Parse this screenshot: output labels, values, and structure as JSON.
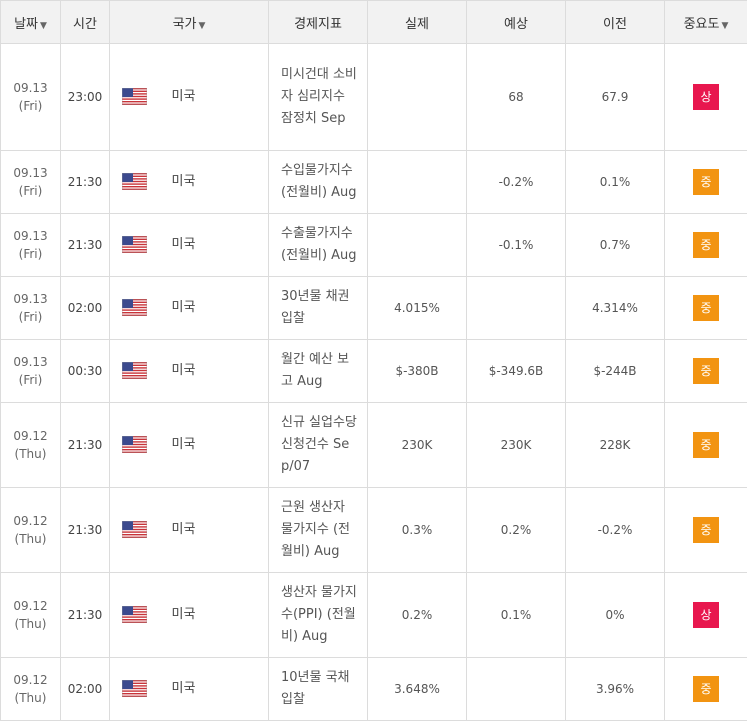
{
  "header": {
    "date": "날짜",
    "time": "시간",
    "country": "국가",
    "indicator": "경제지표",
    "actual": "실제",
    "forecast": "예상",
    "previous": "이전",
    "importance": "중요도",
    "sort_arrow": "▼"
  },
  "colors": {
    "high": "#e8174e",
    "mid": "#f29411"
  },
  "rows": [
    {
      "date": "09.13",
      "day": "(Fri)",
      "time": "23:00",
      "flag": "us-flag-icon",
      "country": "미국",
      "indicator": "미시건대 소비자 심리지수 잠정치 Sep",
      "actual": "",
      "forecast": "68",
      "previous": "67.9",
      "importance": "상",
      "level": "high"
    },
    {
      "date": "09.13",
      "day": "(Fri)",
      "time": "21:30",
      "flag": "us-flag-icon",
      "country": "미국",
      "indicator": "수입물가지수 (전월비) Aug",
      "actual": "",
      "forecast": "-0.2%",
      "previous": "0.1%",
      "importance": "중",
      "level": "mid"
    },
    {
      "date": "09.13",
      "day": "(Fri)",
      "time": "21:30",
      "flag": "us-flag-icon",
      "country": "미국",
      "indicator": "수출물가지수 (전월비) Aug",
      "actual": "",
      "forecast": "-0.1%",
      "previous": "0.7%",
      "importance": "중",
      "level": "mid"
    },
    {
      "date": "09.13",
      "day": "(Fri)",
      "time": "02:00",
      "flag": "us-flag-icon",
      "country": "미국",
      "indicator": "30년물 채권 입찰",
      "actual": "4.015%",
      "forecast": "",
      "previous": "4.314%",
      "importance": "중",
      "level": "mid"
    },
    {
      "date": "09.13",
      "day": "(Fri)",
      "time": "00:30",
      "flag": "us-flag-icon",
      "country": "미국",
      "indicator": "월간 예산 보고 Aug",
      "actual": "$-380B",
      "forecast": "$-349.6B",
      "previous": "$-244B",
      "importance": "중",
      "level": "mid"
    },
    {
      "date": "09.12",
      "day": "(Thu)",
      "time": "21:30",
      "flag": "us-flag-icon",
      "country": "미국",
      "indicator": "신규 실업수당 신청건수 Sep/07",
      "actual": "230K",
      "forecast": "230K",
      "previous": "228K",
      "importance": "중",
      "level": "mid"
    },
    {
      "date": "09.12",
      "day": "(Thu)",
      "time": "21:30",
      "flag": "us-flag-icon",
      "country": "미국",
      "indicator": "근원 생산자 물가지수 (전월비) Aug",
      "actual": "0.3%",
      "forecast": "0.2%",
      "previous": "-0.2%",
      "importance": "중",
      "level": "mid"
    },
    {
      "date": "09.12",
      "day": "(Thu)",
      "time": "21:30",
      "flag": "us-flag-icon",
      "country": "미국",
      "indicator": "생산자 물가지수(PPI) (전월비) Aug",
      "actual": "0.2%",
      "forecast": "0.1%",
      "previous": "0%",
      "importance": "상",
      "level": "high"
    },
    {
      "date": "09.12",
      "day": "(Thu)",
      "time": "02:00",
      "flag": "us-flag-icon",
      "country": "미국",
      "indicator": "10년물 국채 입찰",
      "actual": "3.648%",
      "forecast": "",
      "previous": "3.96%",
      "importance": "중",
      "level": "mid"
    }
  ]
}
